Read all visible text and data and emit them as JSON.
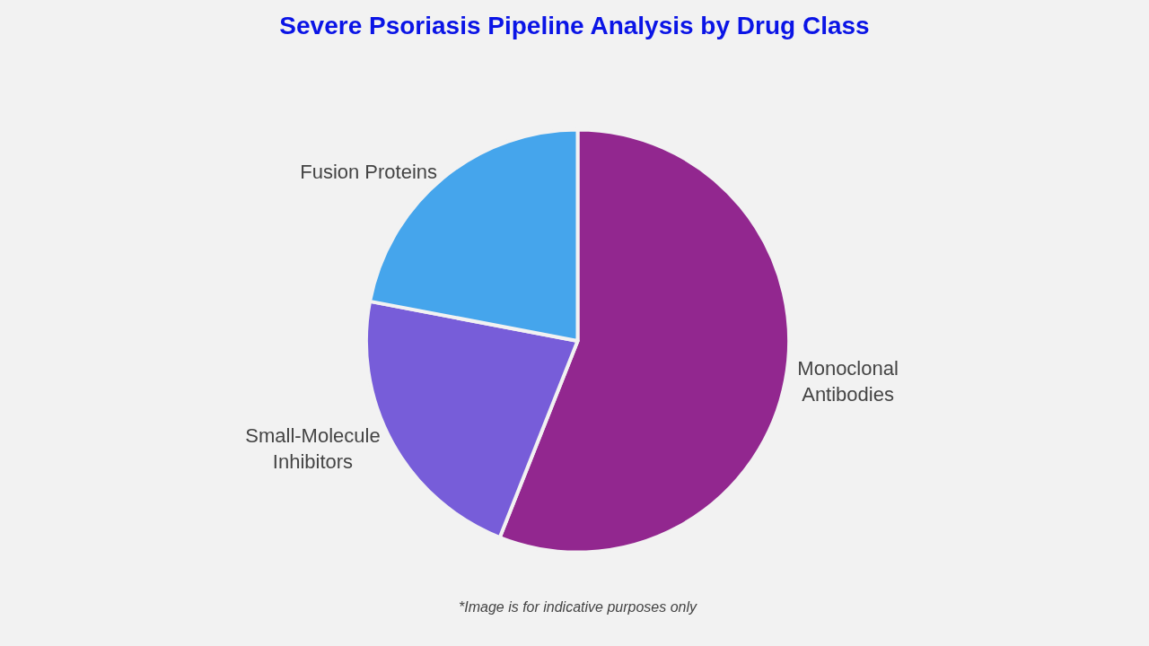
{
  "chart_data": {
    "type": "pie",
    "title": "Severe Psoriasis Pipeline Analysis by Drug Class",
    "categories": [
      "Monoclonal Antibodies",
      "Small-Molecule Inhibitors",
      "Fusion Proteins"
    ],
    "values": [
      56,
      22,
      22
    ],
    "colors": [
      "#92278f",
      "#775dd9",
      "#45a5ec"
    ],
    "annotations": [
      "*Image is for indicative purposes only"
    ]
  }
}
